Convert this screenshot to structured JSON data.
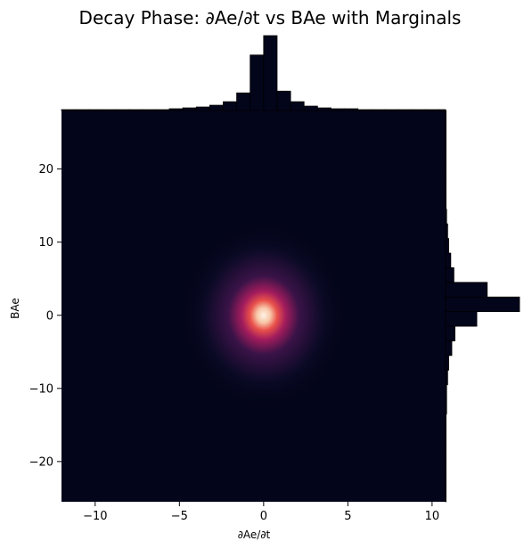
{
  "chart_data": {
    "type": "heatmap",
    "title": "Decay Phase: ∂Ae/∂t vs BAe with Marginals",
    "xlabel": "∂Ae/∂t",
    "ylabel": "BAe",
    "xlim": [
      -12,
      10.8
    ],
    "ylim": [
      -25.5,
      28
    ],
    "x_ticks": [
      -10,
      -5,
      0,
      5,
      10
    ],
    "y_ticks": [
      -20,
      -10,
      0,
      10,
      20
    ],
    "x_tick_labels": [
      "−10",
      "−5",
      "0",
      "5",
      "10"
    ],
    "y_tick_labels": [
      "−20",
      "−10",
      "0",
      "10",
      "20"
    ],
    "density_peak": {
      "x": 0,
      "y": 0
    },
    "colormap": [
      "#03051a",
      "#4c1d4b",
      "#a11a5b",
      "#e83f3f",
      "#f69c73",
      "#faebdd"
    ],
    "marginal_x": {
      "bin_edges": [
        -12,
        -11.2,
        -10.4,
        -9.6,
        -8.8,
        -8.0,
        -7.2,
        -6.4,
        -5.6,
        -4.8,
        -4.0,
        -3.2,
        -2.4,
        -1.6,
        -0.8,
        0,
        0.8,
        1.6,
        2.4,
        3.2,
        4.0,
        4.8,
        5.6,
        6.4,
        7.2,
        8.0,
        8.8,
        9.6,
        10.4,
        10.8
      ],
      "counts": [
        1,
        1,
        1,
        1,
        1,
        1,
        1,
        1,
        2,
        3,
        4,
        6,
        10,
        20,
        63,
        85,
        22,
        10,
        5,
        3,
        2,
        2,
        1,
        1,
        1,
        1,
        1,
        1,
        1
      ]
    },
    "marginal_y": {
      "bin_edges": [
        -25.5,
        -23.5,
        -21.5,
        -19.5,
        -17.5,
        -15.5,
        -13.5,
        -11.5,
        -9.5,
        -7.5,
        -5.5,
        -3.5,
        -1.5,
        0.5,
        2.5,
        4.5,
        6.5,
        8.5,
        10.5,
        12.5,
        14.5,
        16.5,
        18.5,
        20.5,
        22.5,
        24.5,
        26.5,
        28
      ],
      "counts": [
        0.5,
        0.5,
        0.5,
        0.5,
        0.5,
        0.5,
        1,
        1,
        2,
        3,
        6,
        9,
        30,
        71,
        40,
        8,
        5,
        3,
        2,
        1,
        0.5,
        0.5,
        0.5,
        0.5,
        0.5,
        0.5,
        0.5
      ]
    }
  }
}
